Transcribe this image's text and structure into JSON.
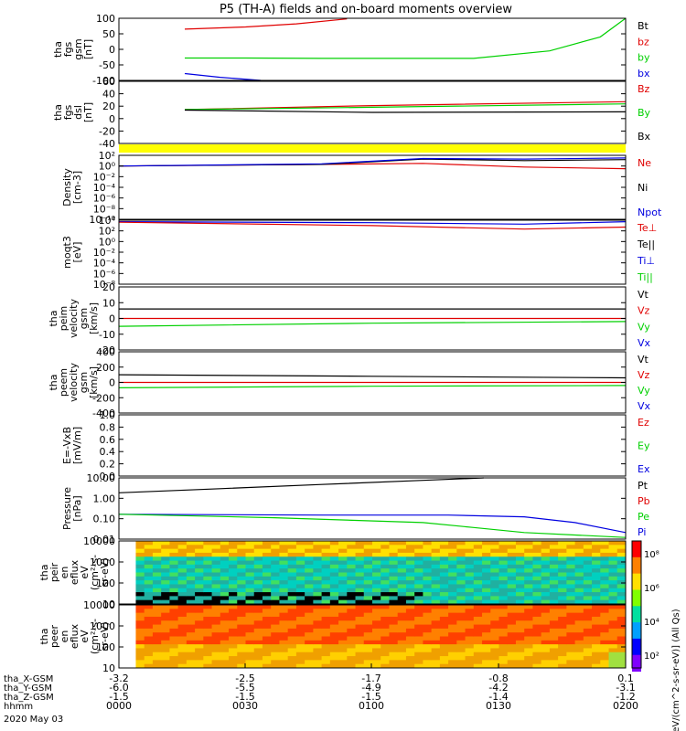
{
  "title": "P5 (TH-A) fields and on-board moments overview",
  "colors": {
    "black": "#000000",
    "red": "#e00000",
    "green": "#00d000",
    "blue": "#0000e0",
    "yellow": "#ffff00"
  },
  "chart_data": [
    {
      "type": "line",
      "ylabel": [
        "tha",
        "fgs",
        "gsm",
        "[nT]"
      ],
      "yticks": [
        "100",
        "50",
        "0",
        "-50",
        "-100"
      ],
      "ylim": [
        -100,
        100
      ],
      "legend": [
        {
          "name": "Bt",
          "color": "#000000"
        },
        {
          "name": "bz",
          "color": "#e00000"
        },
        {
          "name": "by",
          "color": "#00d000"
        },
        {
          "name": "bx",
          "color": "#0000e0"
        }
      ],
      "series": [
        {
          "name": "bz",
          "x": [
            0.13,
            0.25,
            0.35,
            0.45
          ],
          "y": [
            65,
            72,
            82,
            98
          ]
        },
        {
          "name": "by",
          "x": [
            0.13,
            0.25,
            0.4,
            0.7,
            0.85,
            0.95,
            1.0
          ],
          "y": [
            -28,
            -28,
            -29,
            -29,
            -5,
            40,
            100
          ]
        },
        {
          "name": "bx",
          "x": [
            0.13,
            0.2,
            0.28
          ],
          "y": [
            -78,
            -90,
            -100
          ]
        }
      ]
    },
    {
      "type": "line",
      "ylabel": [
        "tha",
        "fgs",
        "dsl",
        "[nT]"
      ],
      "yticks": [
        "60",
        "40",
        "20",
        "0",
        "-20",
        "-40"
      ],
      "ylim": [
        -50,
        60
      ],
      "legend": [
        {
          "name": "Bz",
          "color": "#e00000"
        },
        {
          "name": "By",
          "color": "#00d000"
        },
        {
          "name": "Bx",
          "color": "#000000"
        }
      ],
      "series": [
        {
          "name": "Bz",
          "x": [
            0.13,
            0.5,
            1.0
          ],
          "y": [
            10,
            17,
            24
          ]
        },
        {
          "name": "By",
          "x": [
            0.13,
            0.5,
            1.0
          ],
          "y": [
            10,
            14,
            20
          ]
        },
        {
          "name": "Bx",
          "x": [
            0.13,
            0.5,
            1.0
          ],
          "y": [
            9,
            5,
            6
          ]
        }
      ]
    },
    {
      "type": "line",
      "ylabel": [
        "Density",
        "[cm-3]"
      ],
      "yticks": [
        "10²",
        "10⁰",
        "10⁻²",
        "10⁻⁴",
        "10⁻⁶",
        "10⁻⁸",
        "10⁻¹⁰"
      ],
      "log": true,
      "ylim": [
        -10,
        2
      ],
      "legend": [
        {
          "name": "Ne",
          "color": "#e00000"
        },
        {
          "name": "Ni",
          "color": "#000000"
        },
        {
          "name": "Npot",
          "color": "#0000e0"
        }
      ],
      "series": [
        {
          "name": "Ne",
          "x": [
            0.0,
            0.4,
            0.6,
            0.8,
            1.0
          ],
          "y": [
            0.0,
            0.3,
            0.5,
            -0.2,
            -0.5
          ]
        },
        {
          "name": "Ni",
          "x": [
            0.0,
            0.4,
            0.6,
            0.8,
            1.0
          ],
          "y": [
            0.0,
            0.3,
            1.3,
            1.0,
            1.2
          ]
        },
        {
          "name": "Npot",
          "x": [
            0.0,
            0.4,
            0.6,
            0.8,
            1.0
          ],
          "y": [
            0.0,
            0.4,
            1.4,
            1.3,
            1.5
          ]
        }
      ]
    },
    {
      "type": "line",
      "ylabel": [
        "moqt3",
        "[eV]"
      ],
      "yticks": [
        "10⁴",
        "10²",
        "10⁰",
        "10⁻²",
        "10⁻⁴",
        "10⁻⁶",
        "10⁻⁸"
      ],
      "log": true,
      "ylim": [
        -9,
        4
      ],
      "legend": [
        {
          "name": "Te⊥",
          "color": "#e00000"
        },
        {
          "name": "Te||",
          "color": "#000000"
        },
        {
          "name": "Ti⊥",
          "color": "#0000e0"
        },
        {
          "name": "Ti||",
          "color": "#00d000"
        }
      ],
      "series": [
        {
          "name": "Ti⊥",
          "x": [
            0.0,
            0.5,
            0.8,
            1.0
          ],
          "y": [
            3.7,
            3.5,
            3.2,
            3.7
          ]
        },
        {
          "name": "Te⊥",
          "x": [
            0.0,
            0.5,
            0.8,
            1.0
          ],
          "y": [
            3.6,
            2.9,
            2.2,
            2.6
          ]
        }
      ]
    },
    {
      "type": "line",
      "ylabel": [
        "tha",
        "peim",
        "velocity",
        "gsm",
        "[km/s]"
      ],
      "yticks": [
        "20",
        "10",
        "0",
        "-10",
        "-20"
      ],
      "ylim": [
        -20,
        20
      ],
      "legend": [
        {
          "name": "Vt",
          "color": "#000000"
        },
        {
          "name": "Vz",
          "color": "#e00000"
        },
        {
          "name": "Vy",
          "color": "#00d000"
        },
        {
          "name": "Vx",
          "color": "#0000e0"
        }
      ],
      "series": [
        {
          "name": "Vt",
          "x": [
            0.0,
            0.5,
            1.0
          ],
          "y": [
            6,
            6,
            6
          ]
        },
        {
          "name": "Vz",
          "x": [
            0.0,
            0.5,
            1.0
          ],
          "y": [
            0,
            0,
            0
          ]
        },
        {
          "name": "Vy",
          "x": [
            0.0,
            0.5,
            1.0
          ],
          "y": [
            -5,
            -3,
            -2
          ]
        }
      ]
    },
    {
      "type": "line",
      "ylabel": [
        "tha",
        "peem",
        "velocity",
        "gsm",
        "[km/s]"
      ],
      "yticks": [
        "400",
        "200",
        "0",
        "-200",
        "-400"
      ],
      "ylim": [
        -400,
        400
      ],
      "legend": [
        {
          "name": "Vt",
          "color": "#000000"
        },
        {
          "name": "Vz",
          "color": "#e00000"
        },
        {
          "name": "Vy",
          "color": "#00d000"
        },
        {
          "name": "Vx",
          "color": "#0000e0"
        }
      ],
      "series": [
        {
          "name": "Vt",
          "x": [
            0.0,
            0.5,
            1.0
          ],
          "y": [
            100,
            80,
            60
          ]
        },
        {
          "name": "Vz",
          "x": [
            0.0,
            0.5,
            1.0
          ],
          "y": [
            0,
            0,
            0
          ]
        },
        {
          "name": "Vy",
          "x": [
            0.0,
            0.5,
            1.0
          ],
          "y": [
            -70,
            -50,
            -40
          ]
        }
      ]
    },
    {
      "type": "line",
      "ylabel": [
        "E=-VxB",
        "[mV/m]"
      ],
      "yticks": [
        "1.0",
        "0.8",
        "0.6",
        "0.4",
        "0.2",
        "0.0"
      ],
      "ylim": [
        0,
        1
      ],
      "legend": [
        {
          "name": "Ez",
          "color": "#e00000"
        },
        {
          "name": "Ey",
          "color": "#00d000"
        },
        {
          "name": "Ex",
          "color": "#0000e0"
        }
      ],
      "series": []
    },
    {
      "type": "line",
      "ylabel": [
        "Pressure",
        "[nPa]"
      ],
      "yticks": [
        "10.00",
        "1.00",
        "0.10",
        "0.01"
      ],
      "log": true,
      "ylim": [
        -2.3,
        1.4
      ],
      "legend": [
        {
          "name": "Pt",
          "color": "#000000"
        },
        {
          "name": "Pb",
          "color": "#e00000"
        },
        {
          "name": "Pe",
          "color": "#00d000"
        },
        {
          "name": "Pi",
          "color": "#0000e0"
        }
      ],
      "series": [
        {
          "name": "Pt",
          "x": [
            0.0,
            0.2,
            0.4,
            0.6,
            0.72
          ],
          "y": [
            0.5,
            0.75,
            1.0,
            1.25,
            1.4
          ]
        },
        {
          "name": "Pi",
          "x": [
            0.0,
            0.4,
            0.65,
            0.8,
            0.9,
            1.0
          ],
          "y": [
            -0.8,
            -0.85,
            -0.85,
            -0.95,
            -1.3,
            -1.9
          ]
        },
        {
          "name": "Pe",
          "x": [
            0.0,
            0.3,
            0.6,
            0.7,
            0.8,
            1.0
          ],
          "y": [
            -0.8,
            -1.0,
            -1.3,
            -1.6,
            -1.9,
            -2.2
          ]
        }
      ]
    },
    {
      "type": "heatmap",
      "ylabel": [
        "tha",
        "peir",
        "en",
        "eflux",
        "eV",
        "(cm²-s-",
        "sr-eV)"
      ],
      "yticks": [
        "10000",
        "1000",
        "100",
        "10"
      ],
      "log": true,
      "ylim": [
        0.85,
        4.3
      ]
    },
    {
      "type": "heatmap",
      "ylabel": [
        "tha",
        "peer",
        "en",
        "eflux",
        "eV",
        "(cm²-s-",
        "sr-eV)"
      ],
      "yticks": [
        "10000",
        "1000",
        "100",
        "10"
      ],
      "log": true,
      "ylim": [
        0.85,
        4.3
      ]
    }
  ],
  "colorbar": {
    "ticks": [
      "10⁸",
      "10⁶",
      "10⁴",
      "10²"
    ],
    "label": "[eV/(cm^2-s-sr-eV)] (All Qs)"
  },
  "xaxis": {
    "rows": [
      {
        "label": "tha_X-GSM",
        "values": [
          "-3.2",
          "-2.5",
          "-1.7",
          "-0.8",
          "0.1"
        ]
      },
      {
        "label": "tha_Y-GSM",
        "values": [
          "-6.0",
          "-5.5",
          "-4.9",
          "-4.2",
          "-3.1"
        ]
      },
      {
        "label": "tha_Z-GSM",
        "values": [
          "-1.5",
          "-1.5",
          "-1.5",
          "-1.4",
          "-1.2"
        ]
      },
      {
        "label": "hhmm",
        "values": [
          "0000",
          "0030",
          "0100",
          "0130",
          "0200"
        ]
      }
    ],
    "date": "2020 May 03"
  }
}
